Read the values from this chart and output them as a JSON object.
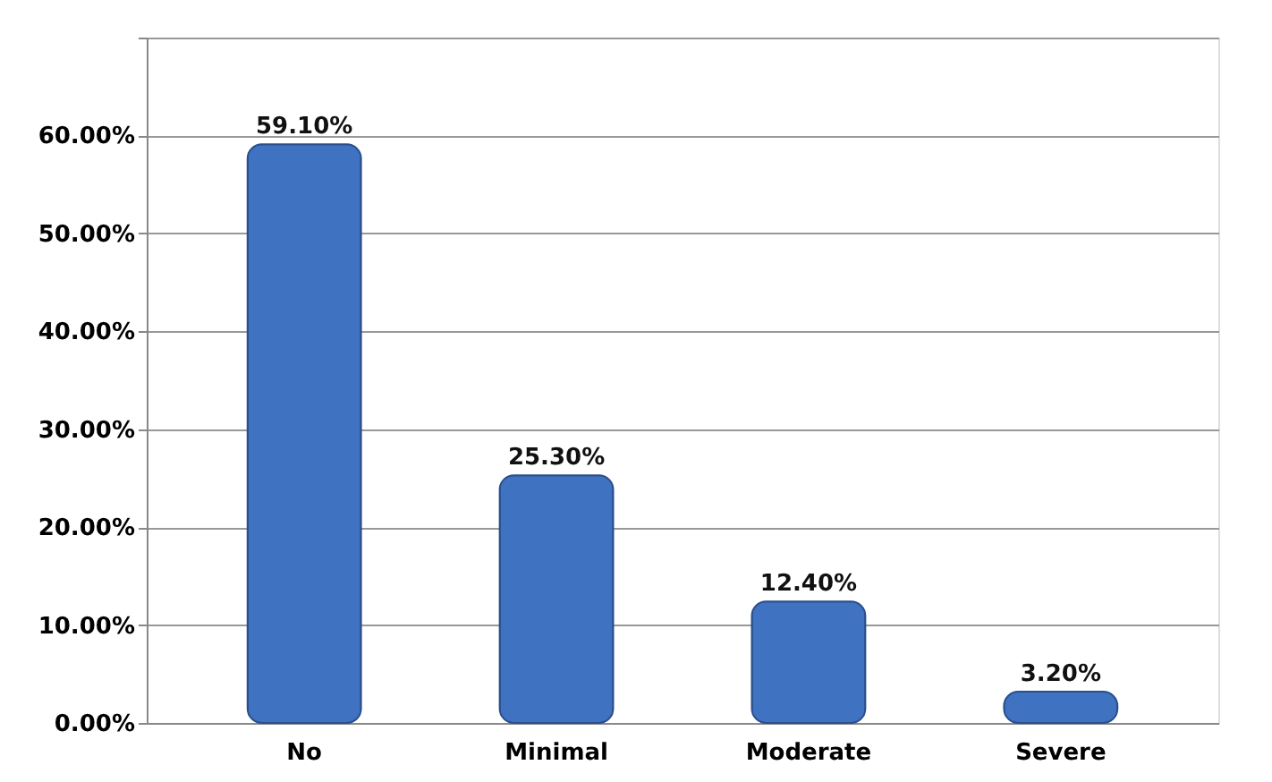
{
  "chart_data": {
    "type": "bar",
    "categories": [
      "No",
      "Minimal",
      "Moderate",
      "Severe"
    ],
    "values": [
      59.1,
      25.3,
      12.4,
      3.2
    ],
    "value_labels": [
      "59.10%",
      "25.30%",
      "12.40%",
      "3.20%"
    ],
    "color": "#3f72c0",
    "ylim": [
      0,
      70
    ],
    "yticks": [
      {
        "value": 0,
        "label": "0.00%"
      },
      {
        "value": 10,
        "label": "10.00%"
      },
      {
        "value": 20,
        "label": "20.00%"
      },
      {
        "value": 30,
        "label": "30.00%"
      },
      {
        "value": 40,
        "label": "40.00%"
      },
      {
        "value": 50,
        "label": "50.00%"
      },
      {
        "value": 60,
        "label": "60.00%"
      },
      {
        "value": 70,
        "label": null
      }
    ],
    "grid": true
  }
}
